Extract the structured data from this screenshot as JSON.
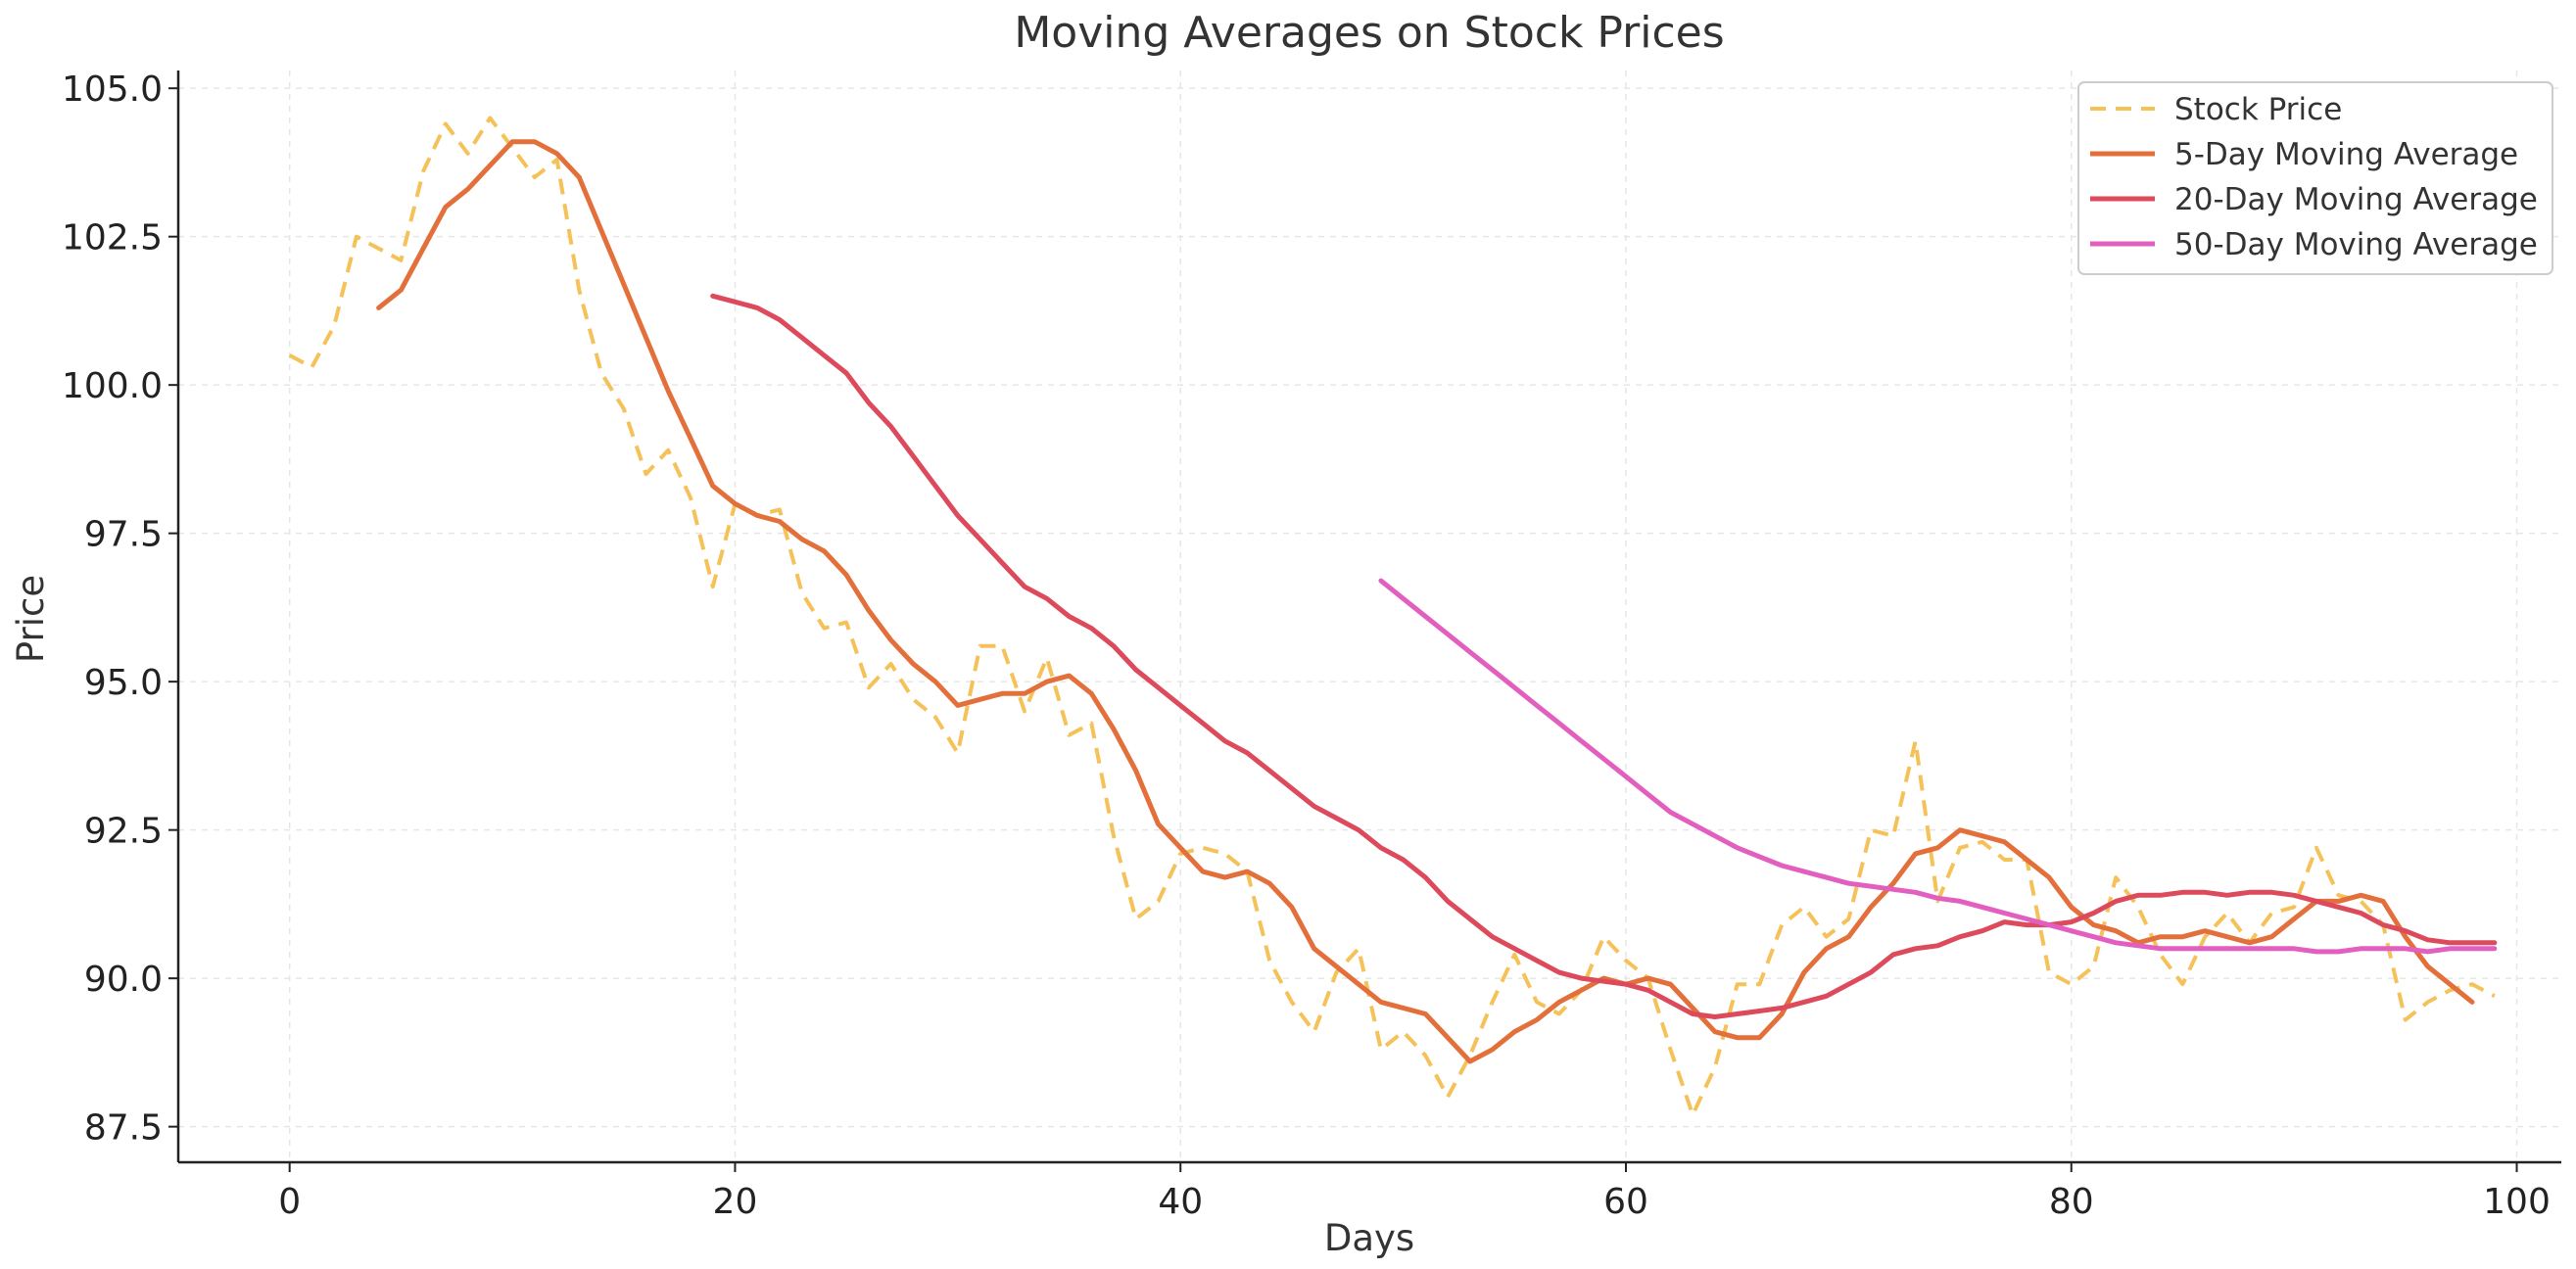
{
  "chart_data": {
    "type": "line",
    "title": "Moving Averages on Stock Prices",
    "xlabel": "Days",
    "ylabel": "Price",
    "xlim": [
      -5,
      102
    ],
    "ylim": [
      86.9,
      105.3
    ],
    "grid": true,
    "legend_position": "top-right",
    "x_ticks": [
      0,
      20,
      40,
      60,
      80,
      100
    ],
    "x_tick_labels": [
      "0",
      "20",
      "40",
      "60",
      "80",
      "100"
    ],
    "y_ticks": [
      87.5,
      90.0,
      92.5,
      95.0,
      97.5,
      100.0,
      102.5,
      105.0
    ],
    "y_tick_labels": [
      "87.5",
      "90.0",
      "92.5",
      "95.0",
      "97.5",
      "100.0",
      "102.5",
      "105.0"
    ],
    "series": [
      {
        "name": "Stock Price",
        "color": "#F5C25A",
        "style": "dashed",
        "x_start": 0,
        "values": [
          100.5,
          100.3,
          101.0,
          102.5,
          102.3,
          102.1,
          103.6,
          104.4,
          103.9,
          104.5,
          104.0,
          103.5,
          103.8,
          101.6,
          100.2,
          99.6,
          98.5,
          98.9,
          98.1,
          96.6,
          98.0,
          97.8,
          97.9,
          96.5,
          95.9,
          96.0,
          94.9,
          95.3,
          94.7,
          94.4,
          93.8,
          95.6,
          95.6,
          94.5,
          95.4,
          94.1,
          94.3,
          92.4,
          91.0,
          91.3,
          92.1,
          92.2,
          92.1,
          91.8,
          90.3,
          89.6,
          89.1,
          90.1,
          90.5,
          88.8,
          89.1,
          88.7,
          88.0,
          88.7,
          89.6,
          90.4,
          89.6,
          89.4,
          89.8,
          90.7,
          90.3,
          90.0,
          88.8,
          87.7,
          88.5,
          89.9,
          89.9,
          90.9,
          91.2,
          90.7,
          91.0,
          92.5,
          92.4,
          94.0,
          91.3,
          92.2,
          92.3,
          92.0,
          92.0,
          90.1,
          89.9,
          90.2,
          91.7,
          91.2,
          90.4,
          89.9,
          90.7,
          91.1,
          90.6,
          91.1,
          91.2,
          92.2,
          91.4,
          91.3,
          90.9,
          89.3,
          89.6,
          89.8,
          89.9,
          89.7
        ]
      },
      {
        "name": "5-Day Moving Average",
        "color": "#E3703A",
        "style": "solid",
        "x_start": 4,
        "values": [
          101.3,
          101.6,
          102.3,
          103.0,
          103.3,
          103.7,
          104.1,
          104.1,
          103.9,
          103.5,
          102.6,
          101.7,
          100.8,
          99.9,
          99.1,
          98.3,
          98.0,
          97.8,
          97.7,
          97.4,
          97.2,
          96.8,
          96.2,
          95.7,
          95.3,
          95.0,
          94.6,
          94.7,
          94.8,
          94.8,
          95.0,
          95.1,
          94.8,
          94.2,
          93.5,
          92.6,
          92.2,
          91.8,
          91.7,
          91.8,
          91.6,
          91.2,
          90.5,
          90.2,
          89.9,
          89.6,
          89.5,
          89.4,
          89.0,
          88.6,
          88.8,
          89.1,
          89.3,
          89.6,
          89.8,
          90.0,
          89.9,
          90.0,
          89.9,
          89.5,
          89.1,
          89.0,
          89.0,
          89.4,
          90.1,
          90.5,
          90.7,
          91.2,
          91.6,
          92.1,
          92.2,
          92.5,
          92.4,
          92.3,
          92.0,
          91.7,
          91.2,
          90.9,
          90.8,
          90.6,
          90.7,
          90.7,
          90.8,
          90.7,
          90.6,
          90.7,
          91.0,
          91.3,
          91.3,
          91.4,
          91.3,
          90.7,
          90.2,
          89.9,
          89.6
        ]
      },
      {
        "name": "20-Day Moving Average",
        "color": "#DC4A5C",
        "style": "solid",
        "x_start": 19,
        "values": [
          101.5,
          101.4,
          101.3,
          101.1,
          100.8,
          100.5,
          100.2,
          99.7,
          99.3,
          98.8,
          98.3,
          97.8,
          97.4,
          97.0,
          96.6,
          96.4,
          96.1,
          95.9,
          95.6,
          95.2,
          94.9,
          94.6,
          94.3,
          94.0,
          93.8,
          93.5,
          93.2,
          92.9,
          92.7,
          92.5,
          92.2,
          92.0,
          91.7,
          91.3,
          91.0,
          90.7,
          90.5,
          90.3,
          90.1,
          90.0,
          89.95,
          89.9,
          89.8,
          89.6,
          89.4,
          89.35,
          89.4,
          89.45,
          89.5,
          89.6,
          89.7,
          89.9,
          90.1,
          90.4,
          90.5,
          90.55,
          90.7,
          90.8,
          90.95,
          90.9,
          90.9,
          90.95,
          91.1,
          91.3,
          91.4,
          91.4,
          91.45,
          91.45,
          91.4,
          91.45,
          91.45,
          91.4,
          91.3,
          91.2,
          91.1,
          90.9,
          90.8,
          90.65,
          90.6,
          90.6,
          90.6
        ]
      },
      {
        "name": "50-Day Moving Average",
        "color": "#E25FC0",
        "style": "solid",
        "x_start": 49,
        "values": [
          96.7,
          96.4,
          96.1,
          95.8,
          95.5,
          95.2,
          94.9,
          94.6,
          94.3,
          94.0,
          93.7,
          93.4,
          93.1,
          92.8,
          92.6,
          92.4,
          92.2,
          92.05,
          91.9,
          91.8,
          91.7,
          91.6,
          91.55,
          91.5,
          91.45,
          91.35,
          91.3,
          91.2,
          91.1,
          91.0,
          90.9,
          90.8,
          90.7,
          90.6,
          90.55,
          90.5,
          90.5,
          90.5,
          90.5,
          90.5,
          90.5,
          90.5,
          90.45,
          90.45,
          90.5,
          90.5,
          90.5,
          90.45,
          90.5,
          90.5,
          90.5
        ]
      }
    ]
  }
}
